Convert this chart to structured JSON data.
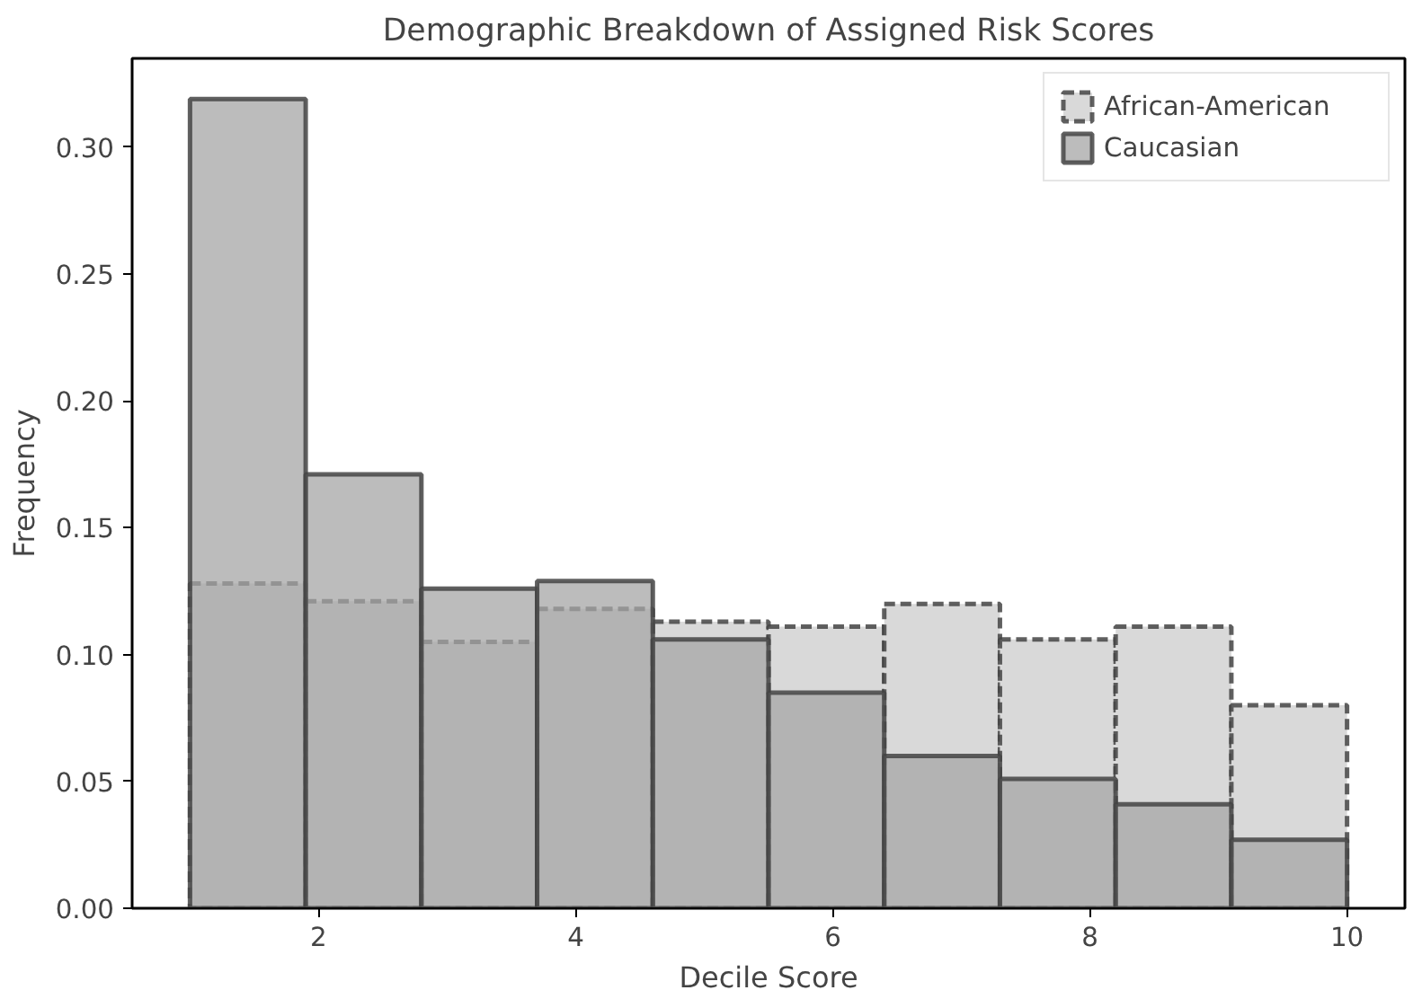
{
  "chart_data": {
    "type": "histogram",
    "title": "Demographic Breakdown of Assigned Risk Scores",
    "xlabel": "Decile Score",
    "ylabel": "Frequency",
    "bins": [
      1,
      1.9,
      2.8,
      3.7,
      4.6,
      5.5,
      6.4,
      7.3,
      8.2,
      9.1,
      10
    ],
    "series": [
      {
        "name": "African-American",
        "color": "#d9d9d9",
        "line_style": "dashed",
        "values": [
          0.128,
          0.121,
          0.105,
          0.118,
          0.113,
          0.111,
          0.12,
          0.106,
          0.111,
          0.08
        ]
      },
      {
        "name": "Caucasian",
        "color": "#a6a6a6",
        "line_style": "solid",
        "values": [
          0.319,
          0.171,
          0.126,
          0.129,
          0.106,
          0.085,
          0.06,
          0.051,
          0.041,
          0.027
        ]
      }
    ],
    "xlim": [
      0.55,
      10.45
    ],
    "ylim": [
      0,
      0.335
    ],
    "xticks": [
      2,
      4,
      6,
      8,
      10
    ],
    "yticks": [
      {
        "value": 0,
        "label": "0.00"
      },
      {
        "value": 0.05,
        "label": "0.05"
      },
      {
        "value": 0.1,
        "label": "0.10"
      },
      {
        "value": 0.15,
        "label": "0.15"
      },
      {
        "value": 0.2,
        "label": "0.20"
      },
      {
        "value": 0.25,
        "label": "0.25"
      },
      {
        "value": 0.3,
        "label": "0.30"
      }
    ],
    "grid": false,
    "legend": "top right"
  }
}
